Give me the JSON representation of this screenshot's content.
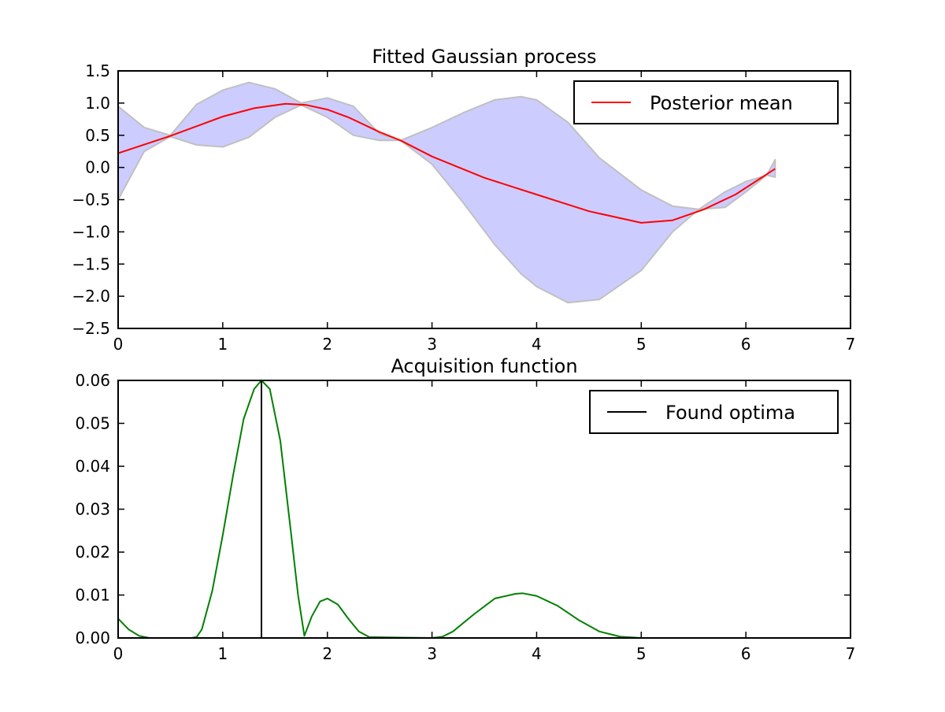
{
  "chart_data": [
    {
      "type": "line",
      "title": "Fitted Gaussian process",
      "xlabel": "",
      "ylabel": "",
      "xlim": [
        0,
        7
      ],
      "ylim": [
        -2.5,
        1.5
      ],
      "xticks": [
        "0",
        "1",
        "2",
        "3",
        "4",
        "5",
        "6",
        "7"
      ],
      "yticks": [
        "1.5",
        "1.0",
        "0.5",
        "0.0",
        "−0.5",
        "−1.0",
        "−1.5",
        "−2.0",
        "−2.5"
      ],
      "legend_position": "top-right",
      "series": [
        {
          "name": "Posterior mean",
          "color": "#ff0000",
          "x": [
            0,
            0.5,
            1.0,
            1.3,
            1.6,
            1.8,
            2.0,
            2.2,
            2.5,
            2.7,
            3.0,
            3.5,
            4.0,
            4.5,
            5.0,
            5.3,
            5.6,
            5.9,
            6.28
          ],
          "y": [
            0.22,
            0.49,
            0.79,
            0.92,
            0.99,
            0.97,
            0.9,
            0.78,
            0.55,
            0.42,
            0.17,
            -0.16,
            -0.42,
            -0.68,
            -0.86,
            -0.82,
            -0.65,
            -0.42,
            -0.02
          ]
        },
        {
          "name": "",
          "type": "band",
          "color": "#ccccff",
          "x": [
            0,
            0.25,
            0.5,
            0.75,
            1.0,
            1.25,
            1.5,
            1.75,
            2.0,
            2.25,
            2.5,
            2.7,
            3.0,
            3.3,
            3.6,
            3.85,
            4.0,
            4.3,
            4.6,
            5.0,
            5.3,
            5.55,
            5.8,
            6.0,
            6.2,
            6.28
          ],
          "upper": [
            0.95,
            0.62,
            0.5,
            0.98,
            1.2,
            1.32,
            1.22,
            1.0,
            1.08,
            0.95,
            0.52,
            0.42,
            0.62,
            0.85,
            1.05,
            1.1,
            1.05,
            0.7,
            0.15,
            -0.35,
            -0.6,
            -0.65,
            -0.38,
            -0.22,
            -0.12,
            0.12
          ],
          "lower": [
            -0.5,
            0.25,
            0.48,
            0.35,
            0.32,
            0.47,
            0.78,
            0.97,
            0.78,
            0.5,
            0.42,
            0.42,
            0.05,
            -0.55,
            -1.2,
            -1.65,
            -1.85,
            -2.1,
            -2.05,
            -1.6,
            -1.0,
            -0.65,
            -0.62,
            -0.38,
            -0.12,
            -0.15
          ]
        }
      ]
    },
    {
      "type": "line",
      "title": "Acquisition function",
      "xlabel": "",
      "ylabel": "",
      "xlim": [
        0,
        7
      ],
      "ylim": [
        0,
        0.06
      ],
      "xticks": [
        "0",
        "1",
        "2",
        "3",
        "4",
        "5",
        "6",
        "7"
      ],
      "yticks": [
        "0.06",
        "0.05",
        "0.04",
        "0.03",
        "0.02",
        "0.01",
        "0.00"
      ],
      "legend_position": "top-right",
      "series": [
        {
          "name": "",
          "color": "#008000",
          "x": [
            0,
            0.1,
            0.2,
            0.3,
            0.5,
            0.7,
            0.75,
            0.8,
            0.9,
            1.0,
            1.1,
            1.2,
            1.3,
            1.37,
            1.45,
            1.55,
            1.65,
            1.72,
            1.78,
            1.85,
            1.93,
            2.0,
            2.1,
            2.2,
            2.3,
            2.4,
            3.0,
            3.1,
            3.2,
            3.4,
            3.6,
            3.8,
            3.87,
            4.0,
            4.2,
            4.4,
            4.6,
            4.8,
            5.0,
            6.3
          ],
          "y": [
            0.0045,
            0.002,
            0.0005,
            0.0,
            0.0,
            0.0,
            0.0002,
            0.002,
            0.011,
            0.024,
            0.038,
            0.051,
            0.058,
            0.06,
            0.058,
            0.046,
            0.025,
            0.01,
            0.0005,
            0.005,
            0.0085,
            0.0092,
            0.0078,
            0.0045,
            0.0015,
            0.0002,
            0.0,
            0.0003,
            0.0015,
            0.0055,
            0.0092,
            0.0103,
            0.0104,
            0.0098,
            0.0075,
            0.0042,
            0.0015,
            0.0003,
            0.0,
            0.0
          ]
        },
        {
          "name": "Found optima",
          "type": "vline",
          "color": "#000000",
          "x": [
            1.37,
            1.37
          ],
          "y": [
            0,
            0.06
          ]
        }
      ]
    }
  ]
}
